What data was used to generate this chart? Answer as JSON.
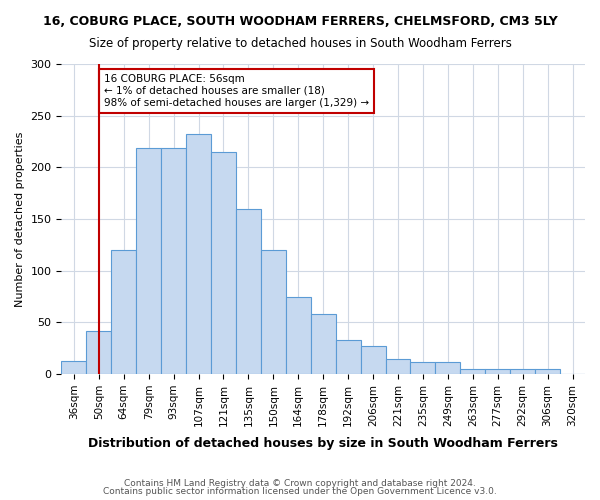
{
  "title1": "16, COBURG PLACE, SOUTH WOODHAM FERRERS, CHELMSFORD, CM3 5LY",
  "title2": "Size of property relative to detached houses in South Woodham Ferrers",
  "xlabel": "Distribution of detached houses by size in South Woodham Ferrers",
  "ylabel": "Number of detached properties",
  "footer1": "Contains HM Land Registry data © Crown copyright and database right 2024.",
  "footer2": "Contains public sector information licensed under the Open Government Licence v3.0.",
  "annotation_line1": "16 COBURG PLACE: 56sqm",
  "annotation_line2": "← 1% of detached houses are smaller (18)",
  "annotation_line3": "98% of semi-detached houses are larger (1,329) →",
  "categories": [
    "36sqm",
    "50sqm",
    "64sqm",
    "79sqm",
    "93sqm",
    "107sqm",
    "121sqm",
    "135sqm",
    "150sqm",
    "164sqm",
    "178sqm",
    "192sqm",
    "206sqm",
    "221sqm",
    "235sqm",
    "249sqm",
    "263sqm",
    "277sqm",
    "292sqm",
    "306sqm",
    "320sqm"
  ],
  "values": [
    13,
    42,
    120,
    219,
    219,
    232,
    215,
    160,
    120,
    75,
    58,
    33,
    27,
    15,
    12,
    12,
    5,
    5,
    5,
    5,
    0
  ],
  "bar_color": "#c6d9f0",
  "bar_edge_color": "#5b9bd5",
  "vline_x": 1,
  "vline_color": "#c00000",
  "annotation_box_edge": "#c00000",
  "ylim": [
    0,
    300
  ],
  "yticks": [
    0,
    50,
    100,
    150,
    200,
    250,
    300
  ],
  "background_color": "#ffffff",
  "grid_color": "#d0d8e4"
}
